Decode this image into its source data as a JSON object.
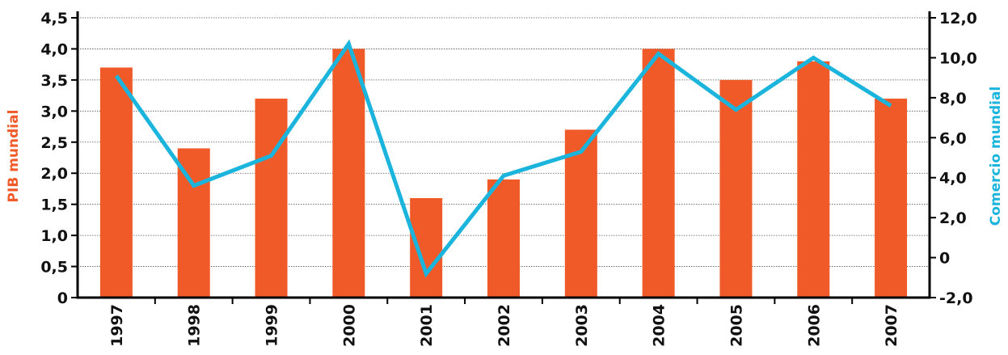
{
  "chart_data": {
    "type": "bar",
    "categories": [
      "1997",
      "1998",
      "1999",
      "2000",
      "2001",
      "2002",
      "2003",
      "2004",
      "2005",
      "2006",
      "2007"
    ],
    "series": [
      {
        "name": "PIB mundial",
        "type": "bar",
        "axis": "left",
        "values": [
          3.7,
          2.4,
          3.2,
          4.0,
          1.6,
          1.9,
          2.7,
          4.0,
          3.5,
          3.8,
          3.2
        ]
      },
      {
        "name": "Comercio mundial",
        "type": "line",
        "axis": "right",
        "values": [
          9.1,
          3.6,
          5.1,
          10.7,
          -0.8,
          4.1,
          5.3,
          10.2,
          7.4,
          10.0,
          7.6
        ]
      }
    ],
    "ylabel": "PIB mundial",
    "y2label": "Comercio mundial",
    "ylim": [
      0,
      4.5
    ],
    "y2lim": [
      -2,
      12
    ],
    "yticks": [
      "0",
      "0,5",
      "1,0",
      "1,5",
      "2,0",
      "2,5",
      "3,0",
      "3,5",
      "4,0",
      "4,5"
    ],
    "y2ticks": [
      "-2,0",
      "0",
      "2,0",
      "4,0",
      "6,0",
      "8,0",
      "10,0",
      "12,0"
    ],
    "grid": true,
    "colors": {
      "bar": "#f05a28",
      "line": "#1ab4dc",
      "left_axis_title": "#f05a28",
      "right_axis_title": "#1ab4dc",
      "grid": "#555555"
    }
  }
}
